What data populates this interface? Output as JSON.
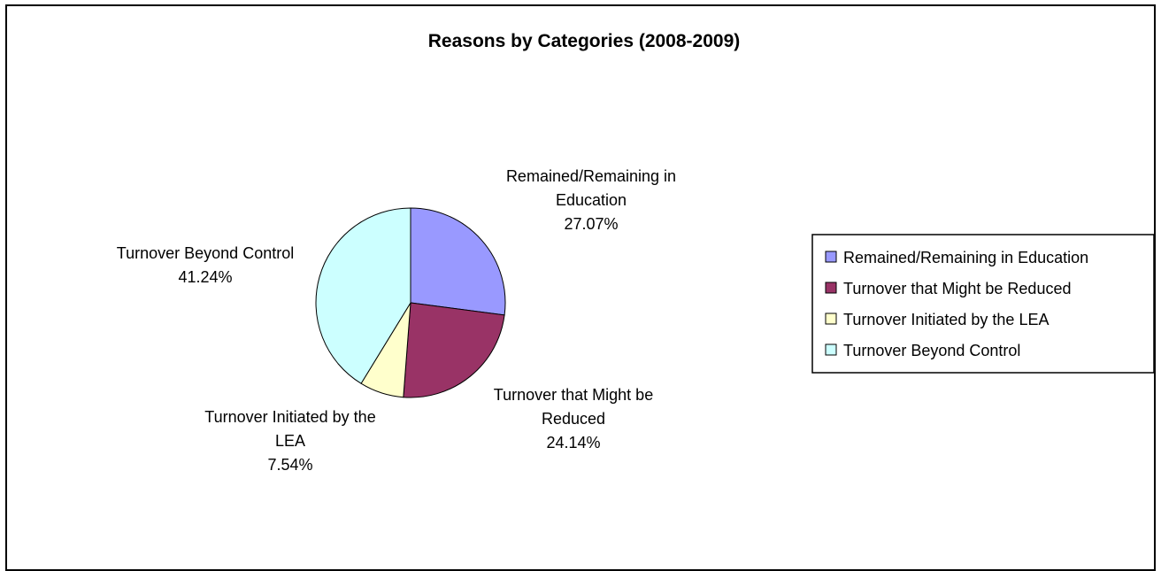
{
  "chart_data": {
    "type": "pie",
    "title": "Reasons by Categories (2008-2009)",
    "slices": [
      {
        "category": "Remained/Remaining in Education",
        "label_lines": [
          "Remained/Remaining in",
          "Education"
        ],
        "value": 27.07,
        "value_label": "27.07%",
        "color": "#9999FF"
      },
      {
        "category": "Turnover that Might be Reduced",
        "label_lines": [
          "Turnover that Might be",
          "Reduced"
        ],
        "value": 24.14,
        "value_label": "24.14%",
        "color": "#993366"
      },
      {
        "category": "Turnover Initiated by the LEA",
        "label_lines": [
          "Turnover Initiated by the",
          "LEA"
        ],
        "value": 7.54,
        "value_label": "7.54%",
        "color": "#FFFFCC"
      },
      {
        "category": "Turnover Beyond Control",
        "label_lines": [
          "Turnover Beyond Control"
        ],
        "value": 41.24,
        "value_label": "41.24%",
        "color": "#CCFFFF"
      }
    ],
    "start_angle": "12 o'clock",
    "direction": "clockwise",
    "legend_position": "right",
    "edge_color": "#000000"
  }
}
